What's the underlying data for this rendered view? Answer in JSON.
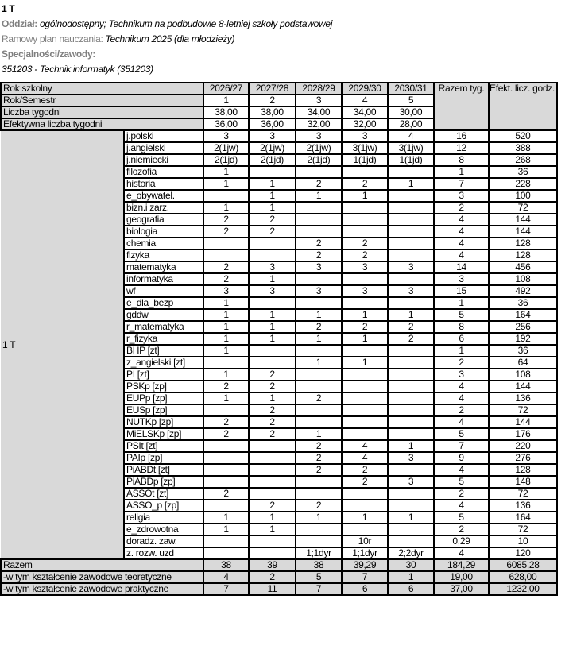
{
  "header": {
    "title": "1 T",
    "oddzial_label": "Oddział:",
    "oddzial_value": "ogólnodostępny; Technikum na podbudowie 8-letniej szkoły podstawowej",
    "plan_label": "Ramowy plan nauczania:",
    "plan_value": "Technikum 2025 (dla młodzieży)",
    "spec_label": "Specjalności/zawody:",
    "spec_value": "351203 - Technik informatyk (351203)"
  },
  "table": {
    "rok_szkolny_label": "Rok szkolny",
    "years": [
      "2026/27",
      "2027/28",
      "2028/29",
      "2029/30",
      "2030/31"
    ],
    "razem_tyg_label": "Razem tyg.",
    "efekt_label": "Efekt. licz. godz.",
    "semestr_label": "Rok/Semestr",
    "semestry": [
      "1",
      "2",
      "3",
      "4",
      "5"
    ],
    "tygodnie_label": "Liczba tygodni",
    "tygodnie": [
      "38,00",
      "38,00",
      "34,00",
      "34,00",
      "30,00"
    ],
    "efektywne_label": "Efektywna liczba tygodni",
    "efektywne": [
      "36,00",
      "36,00",
      "32,00",
      "32,00",
      "28,00"
    ],
    "group_label": "1 T",
    "subjects": [
      {
        "name": "j.polski",
        "v": [
          "3",
          "3",
          "3",
          "3",
          "4"
        ],
        "razem": "16",
        "efekt": "520"
      },
      {
        "name": "j.angielski",
        "v": [
          "2(1jw)",
          "2(1jw)",
          "2(1jw)",
          "3(1jw)",
          "3(1jw)"
        ],
        "razem": "12",
        "efekt": "388"
      },
      {
        "name": "j.niemiecki",
        "v": [
          "2(1jd)",
          "2(1jd)",
          "2(1jd)",
          "1(1jd)",
          "1(1jd)"
        ],
        "razem": "8",
        "efekt": "268"
      },
      {
        "name": "filozofia",
        "v": [
          "1",
          "",
          "",
          "",
          ""
        ],
        "razem": "1",
        "efekt": "36"
      },
      {
        "name": "historia",
        "v": [
          "1",
          "1",
          "2",
          "2",
          "1"
        ],
        "razem": "7",
        "efekt": "228"
      },
      {
        "name": "e_obywatel.",
        "v": [
          "",
          "1",
          "1",
          "1",
          ""
        ],
        "razem": "3",
        "efekt": "100"
      },
      {
        "name": "bizn.i zarz.",
        "v": [
          "1",
          "1",
          "",
          "",
          ""
        ],
        "razem": "2",
        "efekt": "72"
      },
      {
        "name": "geografia",
        "v": [
          "2",
          "2",
          "",
          "",
          ""
        ],
        "razem": "4",
        "efekt": "144"
      },
      {
        "name": "biologia",
        "v": [
          "2",
          "2",
          "",
          "",
          ""
        ],
        "razem": "4",
        "efekt": "144"
      },
      {
        "name": "chemia",
        "v": [
          "",
          "",
          "2",
          "2",
          ""
        ],
        "razem": "4",
        "efekt": "128"
      },
      {
        "name": "fizyka",
        "v": [
          "",
          "",
          "2",
          "2",
          ""
        ],
        "razem": "4",
        "efekt": "128"
      },
      {
        "name": "matematyka",
        "v": [
          "2",
          "3",
          "3",
          "3",
          "3"
        ],
        "razem": "14",
        "efekt": "456"
      },
      {
        "name": "informatyka",
        "v": [
          "2",
          "1",
          "",
          "",
          ""
        ],
        "razem": "3",
        "efekt": "108"
      },
      {
        "name": "wf",
        "v": [
          "3",
          "3",
          "3",
          "3",
          "3"
        ],
        "razem": "15",
        "efekt": "492"
      },
      {
        "name": "e_dla_bezp",
        "v": [
          "1",
          "",
          "",
          "",
          ""
        ],
        "razem": "1",
        "efekt": "36"
      },
      {
        "name": "gddw",
        "v": [
          "1",
          "1",
          "1",
          "1",
          "1"
        ],
        "razem": "5",
        "efekt": "164"
      },
      {
        "name": "r_matematyka",
        "v": [
          "1",
          "1",
          "2",
          "2",
          "2"
        ],
        "razem": "8",
        "efekt": "256"
      },
      {
        "name": "r_fizyka",
        "v": [
          "1",
          "1",
          "1",
          "1",
          "2"
        ],
        "razem": "6",
        "efekt": "192"
      },
      {
        "name": "BHP [zt]",
        "v": [
          "1",
          "",
          "",
          "",
          ""
        ],
        "razem": "1",
        "efekt": "36"
      },
      {
        "name": "z_angielski [zt]",
        "v": [
          "",
          "",
          "1",
          "1",
          ""
        ],
        "razem": "2",
        "efekt": "64"
      },
      {
        "name": "PI [zt]",
        "v": [
          "1",
          "2",
          "",
          "",
          ""
        ],
        "razem": "3",
        "efekt": "108"
      },
      {
        "name": "PSKp [zp]",
        "v": [
          "2",
          "2",
          "",
          "",
          ""
        ],
        "razem": "4",
        "efekt": "144"
      },
      {
        "name": "EUPp [zp]",
        "v": [
          "1",
          "1",
          "2",
          "",
          ""
        ],
        "razem": "4",
        "efekt": "136"
      },
      {
        "name": "EUSp [zp]",
        "v": [
          "",
          "2",
          "",
          "",
          ""
        ],
        "razem": "2",
        "efekt": "72"
      },
      {
        "name": "NUTKp [zp]",
        "v": [
          "2",
          "2",
          "",
          "",
          ""
        ],
        "razem": "4",
        "efekt": "144"
      },
      {
        "name": "MiELSKp [zp]",
        "v": [
          "2",
          "2",
          "1",
          "",
          ""
        ],
        "razem": "5",
        "efekt": "176"
      },
      {
        "name": "PSIt [zt]",
        "v": [
          "",
          "",
          "2",
          "4",
          "1"
        ],
        "razem": "7",
        "efekt": "220"
      },
      {
        "name": "PAIp [zp]",
        "v": [
          "",
          "",
          "2",
          "4",
          "3"
        ],
        "razem": "9",
        "efekt": "276"
      },
      {
        "name": "PiABDt [zt]",
        "v": [
          "",
          "",
          "2",
          "2",
          ""
        ],
        "razem": "4",
        "efekt": "128"
      },
      {
        "name": "PiABDp [zp]",
        "v": [
          "",
          "",
          "",
          "2",
          "3"
        ],
        "razem": "5",
        "efekt": "148"
      },
      {
        "name": "ASSOt [zt]",
        "v": [
          "2",
          "",
          "",
          "",
          ""
        ],
        "razem": "2",
        "efekt": "72"
      },
      {
        "name": "ASSO_p [zp]",
        "v": [
          "",
          "2",
          "2",
          "",
          ""
        ],
        "razem": "4",
        "efekt": "136"
      },
      {
        "name": "religia",
        "v": [
          "1",
          "1",
          "1",
          "1",
          "1"
        ],
        "razem": "5",
        "efekt": "164"
      },
      {
        "name": "e_zdrowotna",
        "v": [
          "1",
          "1",
          "",
          "",
          ""
        ],
        "razem": "2",
        "efekt": "72"
      },
      {
        "name": "doradz. zaw.",
        "v": [
          "",
          "",
          "",
          "10r",
          ""
        ],
        "razem": "0,29",
        "efekt": "10"
      },
      {
        "name": "z. rozw. uzd",
        "v": [
          "",
          "",
          "1;1dyr",
          "1;1dyr",
          "2;2dyr"
        ],
        "razem": "4",
        "efekt": "120"
      }
    ],
    "footer": [
      {
        "label": "Razem",
        "v": [
          "38",
          "39",
          "38",
          "39,29",
          "30"
        ],
        "razem": "184,29",
        "efekt": "6085,28"
      },
      {
        "label": "-w tym kształcenie zawodowe teoretyczne",
        "v": [
          "4",
          "2",
          "5",
          "7",
          "1"
        ],
        "razem": "19,00",
        "efekt": "628,00"
      },
      {
        "label": "-w tym kształcenie zawodowe praktyczne",
        "v": [
          "7",
          "11",
          "7",
          "6",
          "6"
        ],
        "razem": "37,00",
        "efekt": "1232,00"
      }
    ]
  }
}
